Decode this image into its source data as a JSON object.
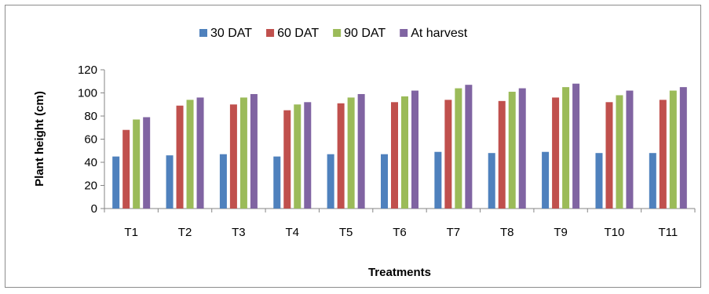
{
  "chart_data": {
    "type": "bar",
    "title": "",
    "xlabel": "Treatments",
    "ylabel": "Plant height (cm)",
    "ylim": [
      0,
      120
    ],
    "yticks": [
      0,
      20,
      40,
      60,
      80,
      100,
      120
    ],
    "categories": [
      "T1",
      "T2",
      "T3",
      "T4",
      "T5",
      "T6",
      "T7",
      "T8",
      "T9",
      "T10",
      "T11"
    ],
    "series": [
      {
        "name": "30 DAT",
        "color": "#4f81bd",
        "values": [
          45,
          46,
          47,
          45,
          47,
          47,
          49,
          48,
          49,
          48,
          48
        ]
      },
      {
        "name": "60 DAT",
        "color": "#c0504d",
        "values": [
          68,
          89,
          90,
          85,
          91,
          92,
          94,
          93,
          96,
          92,
          94
        ]
      },
      {
        "name": "90 DAT",
        "color": "#9bbb59",
        "values": [
          77,
          94,
          96,
          90,
          96,
          97,
          104,
          101,
          105,
          98,
          102
        ]
      },
      {
        "name": "At harvest",
        "color": "#8064a2",
        "values": [
          79,
          96,
          99,
          92,
          99,
          102,
          107,
          104,
          108,
          102,
          105
        ]
      }
    ],
    "legend_position": "top",
    "grid": false
  }
}
